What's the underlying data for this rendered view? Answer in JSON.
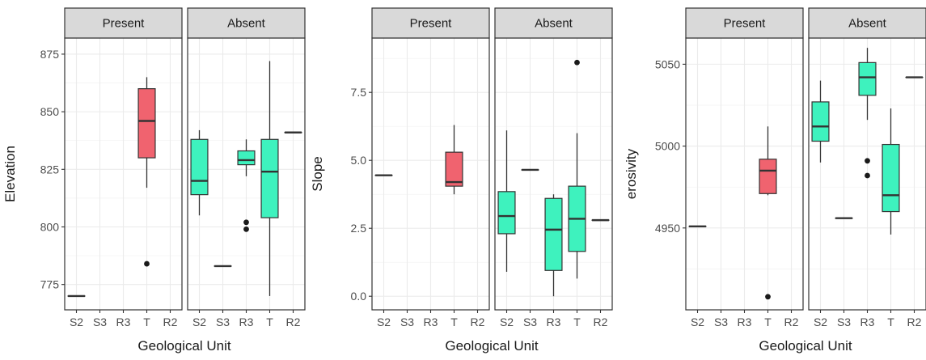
{
  "chart_data": [
    {
      "type": "box",
      "xlabel": "Geological Unit",
      "ylabel": "Elevation",
      "categories": [
        "S2",
        "S3",
        "R3",
        "T",
        "R2"
      ],
      "ylim": [
        764,
        882
      ],
      "yticks": [
        775,
        800,
        825,
        850,
        875
      ],
      "facets": [
        "Present",
        "Absent"
      ],
      "colors": {
        "present": "#f0636f",
        "absent": "#3ef2be"
      },
      "boxes": [
        {
          "facet": "Present",
          "category": "S2",
          "min": 770,
          "q1": 770,
          "median": 770,
          "q3": 770,
          "max": 770,
          "outliers": []
        },
        {
          "facet": "Present",
          "category": "T",
          "min": 817,
          "q1": 830,
          "median": 846,
          "q3": 860,
          "max": 865,
          "outliers": [
            784
          ]
        },
        {
          "facet": "Absent",
          "category": "S2",
          "min": 805,
          "q1": 814,
          "median": 820,
          "q3": 838,
          "max": 842,
          "outliers": []
        },
        {
          "facet": "Absent",
          "category": "S3",
          "min": 783,
          "q1": 783,
          "median": 783,
          "q3": 783,
          "max": 783,
          "outliers": []
        },
        {
          "facet": "Absent",
          "category": "R3",
          "min": 822,
          "q1": 827,
          "median": 829,
          "q3": 833,
          "max": 838,
          "outliers": [
            802,
            799
          ]
        },
        {
          "facet": "Absent",
          "category": "T",
          "min": 770,
          "q1": 804,
          "median": 824,
          "q3": 838,
          "max": 872,
          "outliers": []
        },
        {
          "facet": "Absent",
          "category": "R2",
          "min": 841,
          "q1": 841,
          "median": 841,
          "q3": 841,
          "max": 841,
          "outliers": []
        }
      ]
    },
    {
      "type": "box",
      "xlabel": "Geological Unit",
      "ylabel": "Slope",
      "categories": [
        "S2",
        "S3",
        "R3",
        "T",
        "R2"
      ],
      "ylim": [
        -0.5,
        9.5
      ],
      "yticks": [
        0.0,
        2.5,
        5.0,
        7.5
      ],
      "ytick_labels": [
        "0.0",
        "2.5",
        "5.0",
        "7.5"
      ],
      "facets": [
        "Present",
        "Absent"
      ],
      "colors": {
        "present": "#f0636f",
        "absent": "#3ef2be"
      },
      "boxes": [
        {
          "facet": "Present",
          "category": "S2",
          "min": 4.45,
          "q1": 4.45,
          "median": 4.45,
          "q3": 4.45,
          "max": 4.45,
          "outliers": []
        },
        {
          "facet": "Present",
          "category": "T",
          "min": 3.75,
          "q1": 4.05,
          "median": 4.2,
          "q3": 5.3,
          "max": 6.3,
          "outliers": []
        },
        {
          "facet": "Absent",
          "category": "S2",
          "min": 0.9,
          "q1": 2.3,
          "median": 2.95,
          "q3": 3.85,
          "max": 6.1,
          "outliers": []
        },
        {
          "facet": "Absent",
          "category": "S3",
          "min": 4.65,
          "q1": 4.65,
          "median": 4.65,
          "q3": 4.65,
          "max": 4.65,
          "outliers": []
        },
        {
          "facet": "Absent",
          "category": "R3",
          "min": 0.0,
          "q1": 0.95,
          "median": 2.45,
          "q3": 3.6,
          "max": 3.75,
          "outliers": []
        },
        {
          "facet": "Absent",
          "category": "T",
          "min": 0.65,
          "q1": 1.65,
          "median": 2.85,
          "q3": 4.05,
          "max": 6.0,
          "outliers": [
            8.6
          ]
        },
        {
          "facet": "Absent",
          "category": "R2",
          "min": 2.8,
          "q1": 2.8,
          "median": 2.8,
          "q3": 2.8,
          "max": 2.8,
          "outliers": []
        }
      ]
    },
    {
      "type": "box",
      "xlabel": "Geological Unit",
      "ylabel": "erosivity",
      "categories": [
        "S2",
        "S3",
        "R3",
        "T",
        "R2"
      ],
      "ylim": [
        4900,
        5066
      ],
      "yticks": [
        4950,
        5000,
        5050
      ],
      "facets": [
        "Present",
        "Absent"
      ],
      "colors": {
        "present": "#f0636f",
        "absent": "#3ef2be"
      },
      "boxes": [
        {
          "facet": "Present",
          "category": "S2",
          "min": 4951,
          "q1": 4951,
          "median": 4951,
          "q3": 4951,
          "max": 4951,
          "outliers": []
        },
        {
          "facet": "Present",
          "category": "T",
          "min": 4970,
          "q1": 4971,
          "median": 4985,
          "q3": 4992,
          "max": 5012,
          "outliers": [
            4908
          ]
        },
        {
          "facet": "Absent",
          "category": "S2",
          "min": 4990,
          "q1": 5003,
          "median": 5012,
          "q3": 5027,
          "max": 5040,
          "outliers": []
        },
        {
          "facet": "Absent",
          "category": "S3",
          "min": 4956,
          "q1": 4956,
          "median": 4956,
          "q3": 4956,
          "max": 4956,
          "outliers": []
        },
        {
          "facet": "Absent",
          "category": "R3",
          "min": 5016,
          "q1": 5031,
          "median": 5042,
          "q3": 5051,
          "max": 5060,
          "outliers": [
            4991,
            4982
          ]
        },
        {
          "facet": "Absent",
          "category": "T",
          "min": 4946,
          "q1": 4960,
          "median": 4970,
          "q3": 5001,
          "max": 5023,
          "outliers": []
        },
        {
          "facet": "Absent",
          "category": "R2",
          "min": 5042,
          "q1": 5042,
          "median": 5042,
          "q3": 5042,
          "max": 5042,
          "outliers": []
        }
      ]
    }
  ]
}
